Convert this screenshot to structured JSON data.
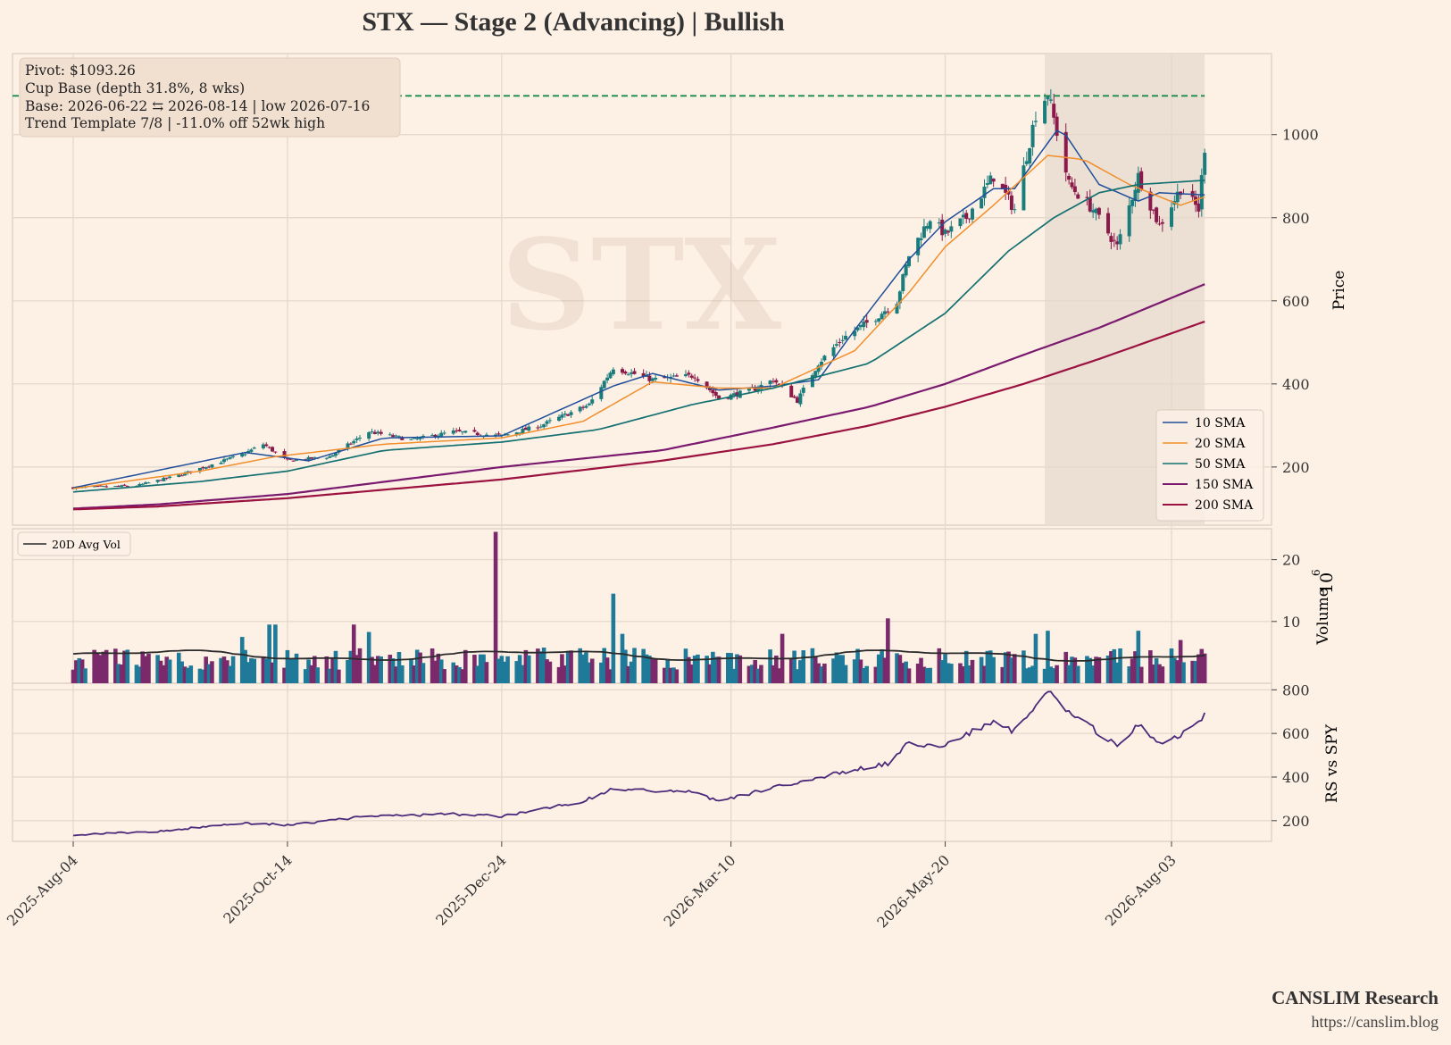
{
  "header": {
    "title": "STX  —  Stage 2 (Advancing)  |  Bullish"
  },
  "watermark": "STX",
  "info_box": {
    "line1": "Pivot: $1093.26",
    "line2": "Cup Base  (depth 31.8%, 8 wks)",
    "line3": "Base: 2026-06-22 ⇆ 2026-08-14  |  low 2026-07-16",
    "line4": "Trend Template 7/8  |  -11.0% off 52wk high"
  },
  "footer": {
    "brand": "CANSLIM Research",
    "url": "https://canslim.blog"
  },
  "colors": {
    "background": "#fdf1e6",
    "grid": "#e6d9cc",
    "up_candle": "#1b7c7c",
    "down_candle": "#8b1a4a",
    "sma10": "#1f4e9a",
    "sma20": "#f28e2b",
    "sma50": "#137070",
    "sma150": "#7a1a6e",
    "sma200": "#9b1240",
    "pivot": "#1a8c4a",
    "rs_line": "#4b2a7a",
    "vol_up": "#1f7a99",
    "vol_down": "#7a2a6a",
    "avg_vol": "#2b2b2b",
    "base_shade": "#e9dcd0"
  },
  "chart_data": [
    {
      "type": "candlestick",
      "panel": "price",
      "ylabel": "Price",
      "ylim": [
        60,
        1195
      ],
      "yticks": [
        200,
        400,
        600,
        800,
        1000
      ],
      "x_tick_labels": [
        "2025-Aug-04",
        "2025-Oct-14",
        "2025-Dec-24",
        "2026-Mar-10",
        "2026-May-20",
        "2026-Aug-03"
      ],
      "x_tick_dates": [
        "2025-08-04",
        "2025-10-14",
        "2025-12-24",
        "2026-03-10",
        "2026-05-20",
        "2026-08-03"
      ],
      "x_range": [
        "2025-08-04",
        "2026-08-14"
      ],
      "pivot": 1093.26,
      "base_start": "2026-06-22",
      "base_end": "2026-08-14",
      "close_anchors": [
        [
          "2025-08-04",
          150
        ],
        [
          "2025-08-25",
          155
        ],
        [
          "2025-09-08",
          180
        ],
        [
          "2025-09-29",
          230
        ],
        [
          "2025-10-06",
          255
        ],
        [
          "2025-10-14",
          215
        ],
        [
          "2025-10-28",
          225
        ],
        [
          "2025-11-10",
          285
        ],
        [
          "2025-11-24",
          265
        ],
        [
          "2025-12-08",
          285
        ],
        [
          "2025-12-24",
          275
        ],
        [
          "2026-01-06",
          300
        ],
        [
          "2026-01-22",
          350
        ],
        [
          "2026-01-30",
          440
        ],
        [
          "2026-02-12",
          410
        ],
        [
          "2026-02-26",
          420
        ],
        [
          "2026-03-06",
          365
        ],
        [
          "2026-03-17",
          385
        ],
        [
          "2026-03-24",
          410
        ],
        [
          "2026-04-01",
          360
        ],
        [
          "2026-04-08",
          450
        ],
        [
          "2026-04-16",
          510
        ],
        [
          "2026-04-27",
          560
        ],
        [
          "2026-05-04",
          600
        ],
        [
          "2026-05-08",
          710
        ],
        [
          "2026-05-15",
          800
        ],
        [
          "2026-05-20",
          760
        ],
        [
          "2026-05-27",
          800
        ],
        [
          "2026-06-05",
          900
        ],
        [
          "2026-06-12",
          820
        ],
        [
          "2026-06-19",
          1050
        ],
        [
          "2026-06-23",
          1100
        ],
        [
          "2026-06-30",
          880
        ],
        [
          "2026-07-08",
          820
        ],
        [
          "2026-07-16",
          730
        ],
        [
          "2026-07-23",
          900
        ],
        [
          "2026-07-30",
          780
        ],
        [
          "2026-08-06",
          870
        ],
        [
          "2026-08-12",
          820
        ],
        [
          "2026-08-14",
          970
        ]
      ],
      "series": [
        {
          "name": "10 SMA",
          "anchors": [
            [
              "2025-08-04",
              150
            ],
            [
              "2025-09-30",
              235
            ],
            [
              "2025-10-21",
              215
            ],
            [
              "2025-11-15",
              270
            ],
            [
              "2025-12-24",
              275
            ],
            [
              "2026-01-30",
              395
            ],
            [
              "2026-02-12",
              425
            ],
            [
              "2026-03-06",
              385
            ],
            [
              "2026-03-24",
              395
            ],
            [
              "2026-04-08",
              410
            ],
            [
              "2026-04-20",
              530
            ],
            [
              "2026-05-08",
              700
            ],
            [
              "2026-05-20",
              790
            ],
            [
              "2026-06-05",
              870
            ],
            [
              "2026-06-12",
              870
            ],
            [
              "2026-06-27",
              1020
            ],
            [
              "2026-07-10",
              880
            ],
            [
              "2026-07-23",
              840
            ],
            [
              "2026-07-30",
              860
            ],
            [
              "2026-08-14",
              855
            ]
          ]
        },
        {
          "name": "20 SMA",
          "anchors": [
            [
              "2025-08-04",
              148
            ],
            [
              "2025-09-15",
              190
            ],
            [
              "2025-10-10",
              225
            ],
            [
              "2025-11-15",
              255
            ],
            [
              "2025-12-24",
              270
            ],
            [
              "2026-01-20",
              310
            ],
            [
              "2026-02-12",
              405
            ],
            [
              "2026-03-06",
              390
            ],
            [
              "2026-03-24",
              390
            ],
            [
              "2026-04-20",
              480
            ],
            [
              "2026-05-08",
              620
            ],
            [
              "2026-05-20",
              730
            ],
            [
              "2026-06-05",
              830
            ],
            [
              "2026-06-23",
              950
            ],
            [
              "2026-07-05",
              940
            ],
            [
              "2026-07-20",
              880
            ],
            [
              "2026-08-06",
              830
            ],
            [
              "2026-08-14",
              850
            ]
          ]
        },
        {
          "name": "50 SMA",
          "anchors": [
            [
              "2025-08-04",
              140
            ],
            [
              "2025-09-15",
              165
            ],
            [
              "2025-10-14",
              190
            ],
            [
              "2025-11-15",
              240
            ],
            [
              "2025-12-24",
              260
            ],
            [
              "2026-01-25",
              290
            ],
            [
              "2026-02-25",
              350
            ],
            [
              "2026-03-24",
              390
            ],
            [
              "2026-04-25",
              450
            ],
            [
              "2026-05-20",
              570
            ],
            [
              "2026-06-10",
              720
            ],
            [
              "2026-06-25",
              800
            ],
            [
              "2026-07-10",
              860
            ],
            [
              "2026-07-23",
              880
            ],
            [
              "2026-08-14",
              890
            ]
          ]
        },
        {
          "name": "150 SMA",
          "anchors": [
            [
              "2025-08-04",
              100
            ],
            [
              "2025-09-01",
              110
            ],
            [
              "2025-10-14",
              135
            ],
            [
              "2025-12-24",
              200
            ],
            [
              "2026-02-15",
              240
            ],
            [
              "2026-03-24",
              295
            ],
            [
              "2026-04-25",
              345
            ],
            [
              "2026-05-20",
              400
            ],
            [
              "2026-06-15",
              470
            ],
            [
              "2026-07-10",
              535
            ],
            [
              "2026-08-14",
              640
            ]
          ]
        },
        {
          "name": "200 SMA",
          "anchors": [
            [
              "2025-08-04",
              98
            ],
            [
              "2025-09-01",
              105
            ],
            [
              "2025-10-14",
              125
            ],
            [
              "2025-12-24",
              170
            ],
            [
              "2026-02-15",
              215
            ],
            [
              "2026-03-24",
              255
            ],
            [
              "2026-04-25",
              300
            ],
            [
              "2026-05-20",
              345
            ],
            [
              "2026-06-15",
              400
            ],
            [
              "2026-07-10",
              460
            ],
            [
              "2026-08-14",
              550
            ]
          ]
        }
      ]
    },
    {
      "type": "bar",
      "panel": "volume",
      "ylabel": "Volume",
      "scale_label": "10",
      "scale_exp": "6",
      "ylim": [
        0,
        25
      ],
      "yticks": [
        10,
        20
      ],
      "avg_series_name": "20D Avg Vol",
      "avg_level": 4.5,
      "spikes": [
        [
          "2025-09-29",
          7.5
        ],
        [
          "2025-10-08",
          9.5
        ],
        [
          "2025-10-10",
          9.5
        ],
        [
          "2025-11-05",
          9.5
        ],
        [
          "2025-11-10",
          8.3
        ],
        [
          "2025-12-22",
          24.5
        ],
        [
          "2026-01-30",
          14.5
        ],
        [
          "2026-02-02",
          8.0
        ],
        [
          "2026-03-27",
          8.0
        ],
        [
          "2026-05-01",
          10.5
        ],
        [
          "2026-06-19",
          8.0
        ],
        [
          "2026-06-23",
          8.5
        ],
        [
          "2026-07-23",
          8.5
        ],
        [
          "2026-08-06",
          7.0
        ]
      ]
    },
    {
      "type": "line",
      "panel": "rs",
      "ylabel": "RS vs SPY",
      "ylim": [
        105,
        830
      ],
      "yticks": [
        200,
        400,
        600,
        800
      ],
      "anchors": [
        [
          "2025-08-04",
          135
        ],
        [
          "2025-09-01",
          150
        ],
        [
          "2025-09-29",
          190
        ],
        [
          "2025-10-14",
          180
        ],
        [
          "2025-11-10",
          220
        ],
        [
          "2025-12-08",
          230
        ],
        [
          "2025-12-24",
          220
        ],
        [
          "2026-01-20",
          290
        ],
        [
          "2026-01-30",
          345
        ],
        [
          "2026-02-26",
          330
        ],
        [
          "2026-03-06",
          290
        ],
        [
          "2026-03-24",
          350
        ],
        [
          "2026-04-08",
          400
        ],
        [
          "2026-05-01",
          460
        ],
        [
          "2026-05-08",
          560
        ],
        [
          "2026-05-20",
          540
        ],
        [
          "2026-06-05",
          660
        ],
        [
          "2026-06-12",
          610
        ],
        [
          "2026-06-23",
          790
        ],
        [
          "2026-06-30",
          700
        ],
        [
          "2026-07-08",
          620
        ],
        [
          "2026-07-16",
          540
        ],
        [
          "2026-07-23",
          650
        ],
        [
          "2026-07-30",
          550
        ],
        [
          "2026-08-06",
          590
        ],
        [
          "2026-08-14",
          680
        ]
      ]
    }
  ]
}
